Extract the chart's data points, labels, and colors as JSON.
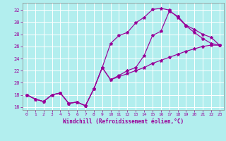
{
  "background_color": "#b2eeee",
  "line_color": "#990099",
  "grid_color": "#ffffff",
  "xlabel": "Windchill (Refroidissement éolien,°C)",
  "xlim": [
    -0.5,
    23.5
  ],
  "ylim": [
    15.5,
    33.2
  ],
  "xticks": [
    0,
    1,
    2,
    3,
    4,
    5,
    6,
    7,
    8,
    9,
    10,
    11,
    12,
    13,
    14,
    15,
    16,
    17,
    18,
    19,
    20,
    21,
    22,
    23
  ],
  "yticks": [
    16,
    18,
    20,
    22,
    24,
    26,
    28,
    30,
    32
  ],
  "line1_y": [
    18.0,
    17.3,
    16.9,
    18.0,
    18.3,
    16.6,
    16.8,
    16.2,
    19.0,
    22.5,
    26.5,
    27.8,
    28.3,
    29.9,
    30.8,
    32.1,
    32.3,
    32.0,
    30.8,
    29.4,
    28.3,
    27.3,
    26.5,
    26.2
  ],
  "line2_y": [
    18.0,
    17.3,
    16.9,
    18.0,
    18.3,
    16.6,
    16.8,
    16.2,
    19.0,
    22.5,
    20.5,
    21.2,
    22.0,
    22.5,
    24.5,
    27.8,
    28.5,
    31.8,
    31.0,
    29.5,
    28.8,
    28.0,
    27.5,
    26.2
  ],
  "line3_y": [
    18.0,
    17.3,
    16.9,
    18.0,
    18.3,
    16.6,
    16.8,
    16.2,
    19.0,
    22.5,
    20.5,
    21.0,
    21.5,
    22.0,
    22.5,
    23.2,
    23.7,
    24.2,
    24.7,
    25.2,
    25.6,
    26.0,
    26.2,
    26.2
  ]
}
